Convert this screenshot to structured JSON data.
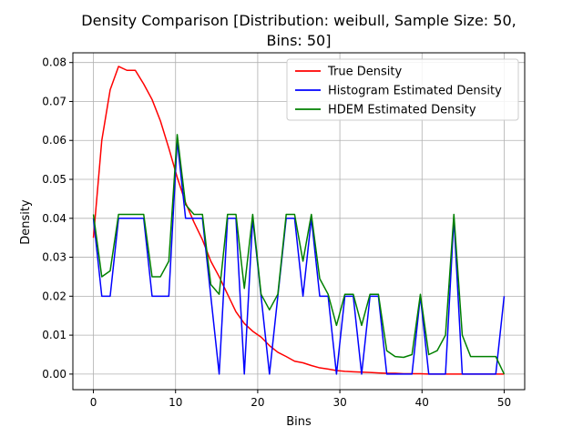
{
  "chart_data": {
    "type": "line",
    "title": "Density Comparison [Distribution: weibull, Sample Size: 50,",
    "title_line2": "Bins: 50]",
    "xlabel": "Bins",
    "ylabel": "Density",
    "xlim": [
      -2.5,
      52.5
    ],
    "ylim": [
      -0.004,
      0.0825
    ],
    "grid": true,
    "legend_position": "top-right",
    "x_ticks": [
      0,
      10,
      20,
      30,
      40,
      50
    ],
    "x_tick_labels": [
      "0",
      "10",
      "20",
      "30",
      "40",
      "50"
    ],
    "y_ticks": [
      0.0,
      0.01,
      0.02,
      0.03,
      0.04,
      0.05,
      0.06,
      0.07,
      0.08
    ],
    "y_tick_labels": [
      "0.00",
      "0.01",
      "0.02",
      "0.03",
      "0.04",
      "0.05",
      "0.06",
      "0.07",
      "0.08"
    ],
    "x": [
      0,
      1.02,
      2.04,
      3.06,
      4.08,
      5.1,
      6.12,
      7.14,
      8.16,
      9.18,
      10.2,
      11.22,
      12.24,
      13.27,
      14.29,
      15.31,
      16.33,
      17.35,
      18.37,
      19.39,
      20.41,
      21.43,
      22.45,
      23.47,
      24.49,
      25.51,
      26.53,
      27.55,
      28.57,
      29.59,
      30.61,
      31.63,
      32.65,
      33.67,
      34.69,
      35.71,
      36.73,
      37.76,
      38.78,
      39.8,
      40.82,
      41.84,
      42.86,
      43.88,
      44.9,
      45.92,
      46.94,
      47.96,
      48.98,
      50
    ],
    "series": [
      {
        "name": "True Density",
        "color": "#ff0000",
        "values": [
          0.035,
          0.06,
          0.073,
          0.079,
          0.078,
          0.078,
          0.0745,
          0.0705,
          0.065,
          0.058,
          0.0505,
          0.044,
          0.039,
          0.0345,
          0.029,
          0.025,
          0.0205,
          0.016,
          0.013,
          0.011,
          0.0095,
          0.0073,
          0.0056,
          0.0045,
          0.0033,
          0.0029,
          0.0022,
          0.0016,
          0.0013,
          0.0009,
          0.0007,
          0.0006,
          0.0005,
          0.0004,
          0.0003,
          0.0002,
          0.0002,
          0.0001,
          0.0001,
          0.0001,
          0.0,
          0.0,
          0.0,
          0.0,
          0.0,
          0.0,
          0.0,
          0.0,
          0.0,
          0.0
        ]
      },
      {
        "name": "Histogram Estimated Density",
        "color": "#0000ff",
        "values": [
          0.04,
          0.02,
          0.02,
          0.04,
          0.04,
          0.04,
          0.04,
          0.02,
          0.02,
          0.02,
          0.06,
          0.04,
          0.04,
          0.04,
          0.02,
          0.0,
          0.04,
          0.04,
          0.0,
          0.04,
          0.02,
          0.0,
          0.02,
          0.04,
          0.04,
          0.02,
          0.04,
          0.02,
          0.02,
          0.0,
          0.02,
          0.02,
          0.0,
          0.02,
          0.02,
          0.0,
          0.0,
          0.0,
          0.0,
          0.02,
          0.0,
          0.0,
          0.0,
          0.04,
          0.0,
          0.0,
          0.0,
          0.0,
          0.0,
          0.02
        ]
      },
      {
        "name": "HDEM Estimated Density",
        "color": "#008000",
        "values": [
          0.041,
          0.025,
          0.0265,
          0.041,
          0.041,
          0.041,
          0.041,
          0.025,
          0.025,
          0.029,
          0.0615,
          0.0435,
          0.041,
          0.041,
          0.023,
          0.0205,
          0.041,
          0.041,
          0.022,
          0.041,
          0.0205,
          0.0165,
          0.0205,
          0.041,
          0.041,
          0.029,
          0.041,
          0.0245,
          0.0205,
          0.0125,
          0.0205,
          0.0205,
          0.0125,
          0.0205,
          0.0205,
          0.006,
          0.0045,
          0.0043,
          0.005,
          0.0205,
          0.005,
          0.006,
          0.01,
          0.041,
          0.01,
          0.0045,
          0.0045,
          0.0045,
          0.0045,
          0.0
        ]
      }
    ]
  }
}
